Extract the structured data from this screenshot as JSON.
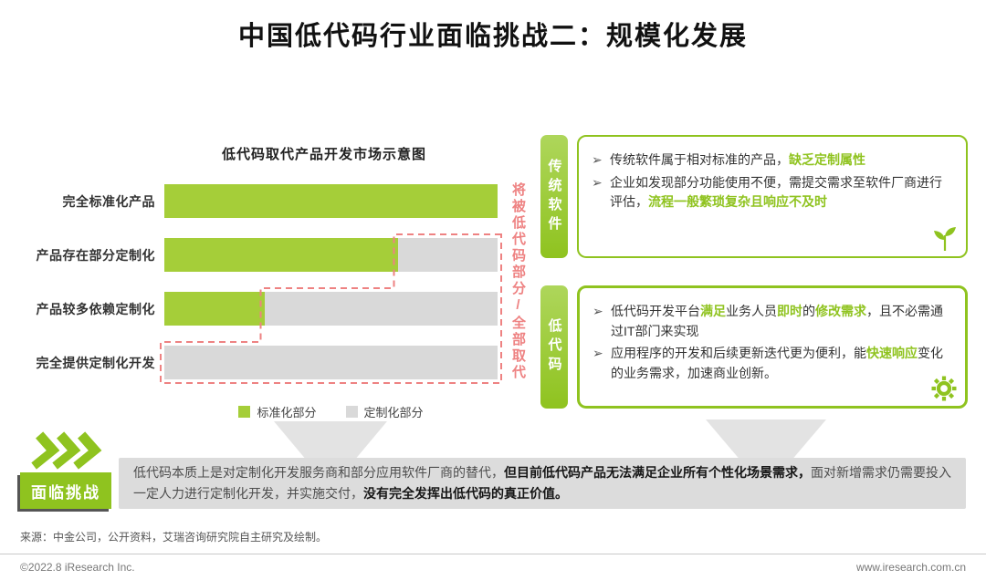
{
  "title": "中国低代码行业面临挑战二：规模化发展",
  "colors": {
    "green": "#8fc31f",
    "bar_green": "#a5ce39",
    "bar_gray": "#d9d9d9",
    "salmon": "#ee8282",
    "banner": "#dcdcdc"
  },
  "bullet_marker": "➢",
  "chart_data": {
    "type": "bar",
    "orientation": "horizontal",
    "stacked": true,
    "title": "低代码取代产品开发市场示意图",
    "categories": [
      "完全标准化产品",
      "产品存在部分定制化",
      "产品较多依赖定制化",
      "完全提供定制化开发"
    ],
    "series": [
      {
        "name": "标准化部分",
        "values": [
          100,
          70,
          30,
          0
        ]
      },
      {
        "name": "定制化部分",
        "values": [
          0,
          30,
          70,
          100
        ]
      }
    ],
    "xlim": [
      0,
      100
    ],
    "legend_position": "bottom",
    "annotation": "将被低代码部分/全部取代"
  },
  "panels": [
    {
      "tab": "传统软件",
      "icon": "sprout-icon",
      "bullets": [
        {
          "runs": [
            {
              "t": "传统软件属于相对标准的产品，",
              "hl": false
            },
            {
              "t": "缺乏定制属性",
              "hl": true
            }
          ]
        },
        {
          "runs": [
            {
              "t": "企业如发现部分功能使用不便，需提交需求至软件厂商进行评估，",
              "hl": false
            },
            {
              "t": "流程一般繁琐复杂且响应不及时",
              "hl": true
            }
          ]
        }
      ]
    },
    {
      "tab": "低代码",
      "icon": "gear-icon",
      "bullets": [
        {
          "runs": [
            {
              "t": "低代码开发平台",
              "hl": false
            },
            {
              "t": "满足",
              "hl": true
            },
            {
              "t": "业务人员",
              "hl": false
            },
            {
              "t": "即时",
              "hl": true
            },
            {
              "t": "的",
              "hl": false
            },
            {
              "t": "修改需求",
              "hl": true
            },
            {
              "t": "，且不必需通过IT部门来实现",
              "hl": false
            }
          ]
        },
        {
          "runs": [
            {
              "t": "应用程序的开发和后续更新迭代更为便利，能",
              "hl": false
            },
            {
              "t": "快速响应",
              "hl": true
            },
            {
              "t": "变化的业务需求，加速商业创新。",
              "hl": false
            }
          ]
        }
      ]
    }
  ],
  "challenge": {
    "label": "面临挑战",
    "runs": [
      {
        "t": "低代码本质上是对定制化开发服务商和部分应用软件厂商的替代，",
        "b": false
      },
      {
        "t": "但目前低代码产品无法满足企业所有个性化场景需求，",
        "b": true
      },
      {
        "t": "面对新增需求仍需要投入一定人力进行定制化开发，并实施交付，",
        "b": false
      },
      {
        "t": "没有完全发挥出低代码的真正价值。",
        "b": true
      }
    ]
  },
  "source": "来源：中金公司，公开资料，艾瑞咨询研究院自主研究及绘制。",
  "footer": {
    "left": "©2022.8 iResearch Inc.",
    "right": "www.iresearch.com.cn"
  }
}
